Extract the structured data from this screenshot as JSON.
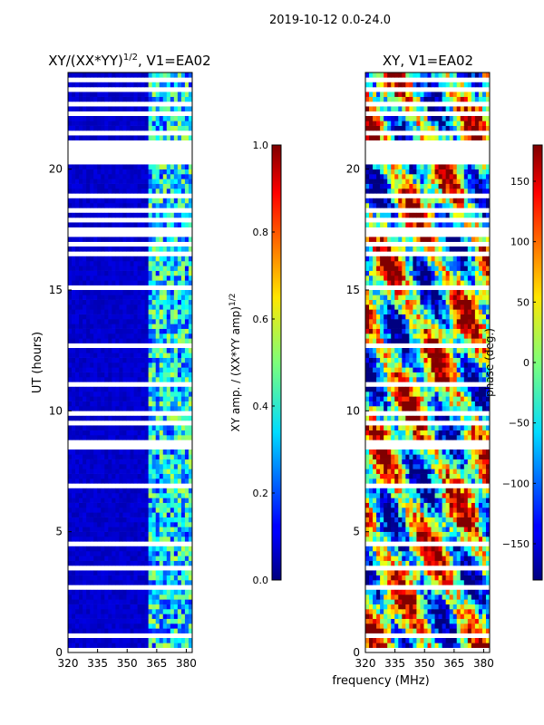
{
  "suptitle": "2019-10-12 0.0-24.0",
  "xlabel": "frequency (MHz)",
  "chart_data": [
    {
      "type": "heatmap",
      "title_main": "XY/(XX*YY)",
      "title_sup": "1/2",
      "title_rest": ", V1=EA02",
      "xlim": [
        320,
        383
      ],
      "ylim": [
        0,
        24
      ],
      "xticks": [
        "320",
        "335",
        "350",
        "365",
        "380"
      ],
      "xtick_values": [
        320,
        335,
        350,
        365,
        380
      ],
      "yticks": [
        "0",
        "5",
        "10",
        "15",
        "20"
      ],
      "ytick_values": [
        0,
        5,
        10,
        15,
        20
      ],
      "ylabel": "UT (hours)",
      "colorbar": {
        "label_main": "XY amp. / (XX*YY amp)",
        "label_sup": "1/2",
        "range": [
          0.0,
          1.0
        ],
        "ticks": [
          "0.0",
          "0.2",
          "0.4",
          "0.6",
          "0.8",
          "1.0"
        ],
        "tick_values": [
          0.0,
          0.2,
          0.4,
          0.6,
          0.8,
          1.0
        ]
      },
      "colormap": "jet",
      "description_values": {
        "low_band_level": 0.05,
        "high_band_start_mhz": 360,
        "high_band_level": 0.35
      }
    },
    {
      "type": "heatmap",
      "title_main": "XY, V1=EA02",
      "xlim": [
        320,
        383
      ],
      "ylim": [
        0,
        24
      ],
      "xticks": [
        "320",
        "335",
        "350",
        "365",
        "380"
      ],
      "xtick_values": [
        320,
        335,
        350,
        365,
        380
      ],
      "yticks": [
        "0",
        "5",
        "10",
        "15",
        "20"
      ],
      "ytick_values": [
        0,
        5,
        10,
        15,
        20
      ],
      "colorbar": {
        "label_main": "phase (deg.)",
        "range": [
          -180,
          180
        ],
        "ticks": [
          "−150",
          "−100",
          "−50",
          "0",
          "50",
          "100",
          "150"
        ],
        "tick_values": [
          -150,
          -100,
          -50,
          0,
          50,
          100,
          150
        ]
      },
      "colormap": "jet"
    }
  ],
  "colors": {
    "background": "#ffffff",
    "axis": "#000000",
    "flagged_row": "#ffffff",
    "low_value": "#00007f"
  }
}
